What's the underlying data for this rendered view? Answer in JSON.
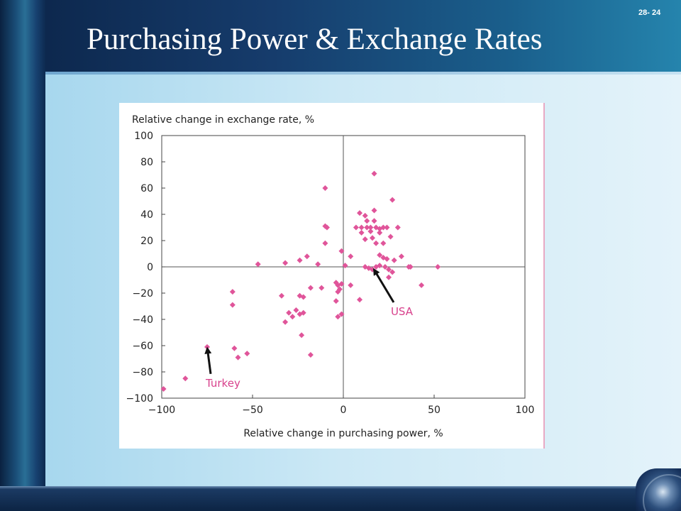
{
  "slide": {
    "title": "Purchasing Power & Exchange Rates",
    "number": "28- 24"
  },
  "colors": {
    "point": "#e0559a",
    "annotation_text": "#d8418c",
    "axis": "#444444"
  },
  "chart_data": {
    "type": "scatter",
    "title": "",
    "xlabel": "Relative change in purchasing power, %",
    "ylabel": "Relative change in exchange rate, %",
    "xlim": [
      -100,
      100
    ],
    "ylim": [
      -100,
      100
    ],
    "x_ticks": [
      -100,
      -50,
      0,
      50,
      100
    ],
    "y_ticks": [
      100,
      80,
      60,
      40,
      20,
      0,
      -20,
      -40,
      -60,
      -80,
      -100
    ],
    "x_tick_labels": [
      "−100",
      "−50",
      "0",
      "50",
      "100"
    ],
    "y_tick_labels": [
      "100",
      "80",
      "60",
      "40",
      "20",
      "0",
      "−20",
      "−40",
      "−60",
      "−80",
      "−100"
    ],
    "grid": false,
    "points": [
      [
        17,
        71
      ],
      [
        27,
        51
      ],
      [
        -10,
        60
      ],
      [
        -9,
        30
      ],
      [
        -10,
        31
      ],
      [
        -10,
        18
      ],
      [
        9,
        41
      ],
      [
        12,
        39
      ],
      [
        17,
        43
      ],
      [
        13,
        35
      ],
      [
        17,
        35
      ],
      [
        7,
        30
      ],
      [
        10,
        30
      ],
      [
        13,
        30
      ],
      [
        15,
        30
      ],
      [
        18,
        30
      ],
      [
        20,
        29
      ],
      [
        22,
        30
      ],
      [
        24,
        30
      ],
      [
        30,
        30
      ],
      [
        10,
        26
      ],
      [
        15,
        27
      ],
      [
        20,
        26
      ],
      [
        26,
        23
      ],
      [
        12,
        21
      ],
      [
        16,
        22
      ],
      [
        18,
        18
      ],
      [
        22,
        18
      ],
      [
        20,
        9
      ],
      [
        22,
        7
      ],
      [
        24,
        6
      ],
      [
        32,
        8
      ],
      [
        28,
        5
      ],
      [
        4,
        8
      ],
      [
        -1,
        12
      ],
      [
        1,
        1
      ],
      [
        12,
        0
      ],
      [
        14,
        -1
      ],
      [
        16,
        -2
      ],
      [
        18,
        0
      ],
      [
        20,
        1
      ],
      [
        23,
        0
      ],
      [
        25,
        -2
      ],
      [
        27,
        -4
      ],
      [
        36,
        0
      ],
      [
        37,
        0
      ],
      [
        52,
        0
      ],
      [
        25,
        -8
      ],
      [
        43,
        -14
      ],
      [
        9,
        -25
      ],
      [
        4,
        -14
      ],
      [
        -47,
        2
      ],
      [
        -32,
        3
      ],
      [
        -24,
        5
      ],
      [
        -20,
        8
      ],
      [
        -14,
        2
      ],
      [
        -12,
        -16
      ],
      [
        -18,
        -16
      ],
      [
        -24,
        -22
      ],
      [
        -22,
        -23
      ],
      [
        -3,
        -14
      ],
      [
        -2,
        -17
      ],
      [
        -4,
        -12
      ],
      [
        -3,
        -19
      ],
      [
        -4,
        -26
      ],
      [
        -1,
        -13
      ],
      [
        -34,
        -22
      ],
      [
        -3,
        -38
      ],
      [
        -1,
        -36
      ],
      [
        -30,
        -35
      ],
      [
        -26,
        -33
      ],
      [
        -28,
        -38
      ],
      [
        -24,
        -36
      ],
      [
        -22,
        -35
      ],
      [
        -32,
        -42
      ],
      [
        -61,
        -19
      ],
      [
        -61,
        -29
      ],
      [
        -23,
        -52
      ],
      [
        -18,
        -67
      ],
      [
        -60,
        -62
      ],
      [
        -58,
        -69
      ],
      [
        -53,
        -66
      ],
      [
        -75,
        -61
      ],
      [
        -87,
        -85
      ],
      [
        -99,
        -93
      ]
    ],
    "annotations": [
      {
        "label": "USA",
        "point": [
          16,
          0
        ]
      },
      {
        "label": "Turkey",
        "point": [
          -75,
          -61
        ]
      }
    ]
  }
}
